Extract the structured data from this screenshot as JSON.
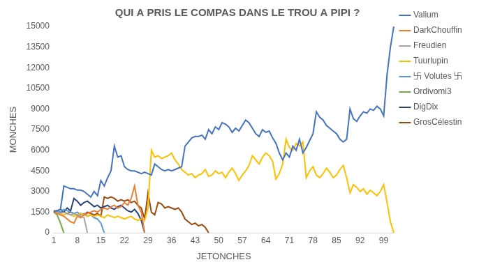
{
  "chart_data": {
    "type": "line",
    "title": "QUI A PRIS LE COMPAS DANS LE TROU A PIPI ?",
    "x_label": "JETONCHES",
    "y_label": "MONCHES",
    "categories": [
      1,
      null,
      null,
      null,
      null,
      null,
      null,
      8,
      null,
      null,
      null,
      null,
      null,
      null,
      15,
      null,
      null,
      null,
      null,
      null,
      null,
      22,
      null,
      null,
      null,
      null,
      null,
      null,
      29,
      null,
      null,
      null,
      null,
      null,
      null,
      36,
      null,
      null,
      null,
      null,
      null,
      null,
      43,
      null,
      null,
      null,
      null,
      null,
      null,
      50,
      null,
      null,
      null,
      null,
      null,
      null,
      57,
      null,
      null,
      null,
      null,
      null,
      null,
      64,
      null,
      null,
      null,
      null,
      null,
      null,
      71,
      null,
      null,
      null,
      null,
      null,
      null,
      78,
      null,
      null,
      null,
      null,
      null,
      null,
      85,
      null,
      null,
      null,
      null,
      null,
      null,
      92,
      null,
      null,
      null,
      null,
      null,
      null,
      99,
      null,
      null,
      null
    ],
    "ylim": [
      0,
      15000
    ],
    "yticks": [
      0,
      1500,
      3000,
      4500,
      6000,
      7500,
      9000,
      10500,
      12000,
      13500,
      15000
    ],
    "grid": false,
    "legend": "right",
    "series": [
      {
        "name": "Valium",
        "color": "#4472c4",
        "values": [
          1500,
          1600,
          1700,
          3400,
          3300,
          3200,
          3200,
          3100,
          3100,
          3000,
          2800,
          2600,
          3000,
          2700,
          3800,
          3400,
          4000,
          4500,
          6300,
          5500,
          5600,
          4800,
          4600,
          4500,
          4500,
          4400,
          4300,
          4400,
          4300,
          4200,
          5000,
          4800,
          4600,
          4500,
          4600,
          4500,
          4600,
          4700,
          4800,
          6300,
          6600,
          6900,
          7000,
          7000,
          7100,
          6800,
          7500,
          7200,
          7700,
          7500,
          8000,
          7900,
          7700,
          7300,
          7600,
          7400,
          7800,
          8200,
          8000,
          7600,
          7200,
          7000,
          7500,
          7300,
          7400,
          6900,
          6500,
          5800,
          5300,
          5800,
          5500,
          6300,
          6000,
          6800,
          5800,
          6200,
          6700,
          7200,
          8800,
          8400,
          8200,
          7800,
          7600,
          7400,
          7200,
          6800,
          6600,
          6800,
          9000,
          8300,
          8100,
          8500,
          8800,
          8700,
          9000,
          8900,
          9200,
          9000,
          8500,
          11500,
          13500,
          15000
        ]
      },
      {
        "name": "DarkChouffin",
        "color": "#ed7d31",
        "values": [
          1500,
          1400,
          1300,
          1200,
          1000,
          800,
          700,
          1200,
          1100,
          1300,
          1400,
          1500,
          1600,
          1500,
          1700,
          1800,
          1700,
          1900,
          2000,
          1800,
          1900,
          2200,
          2000,
          2500,
          3400,
          2000,
          1500,
          0,
          null,
          null,
          null,
          null,
          null,
          null,
          null,
          null,
          null,
          null,
          null,
          null,
          null,
          null,
          null,
          null,
          null,
          null,
          null,
          null,
          null,
          null,
          null,
          null,
          null,
          null,
          null,
          null,
          null,
          null,
          null,
          null,
          null,
          null,
          null,
          null,
          null,
          null,
          null,
          null,
          null,
          null,
          null,
          null,
          null,
          null,
          null,
          null,
          null,
          null,
          null,
          null,
          null,
          null,
          null,
          null,
          null,
          null,
          null,
          null,
          null,
          null,
          null,
          null,
          null,
          null,
          null,
          null,
          null,
          null,
          null,
          null,
          null,
          null
        ]
      },
      {
        "name": "Freudien",
        "color": "#a5a5a5",
        "values": [
          1500,
          1500,
          1400,
          1500,
          1400,
          1300,
          1400,
          1300,
          1200,
          1100,
          0,
          null,
          null,
          null,
          null,
          null,
          null,
          null,
          null,
          null,
          null,
          null,
          null,
          null,
          null,
          null,
          null,
          null,
          null,
          null,
          null,
          null,
          null,
          null,
          null,
          null,
          null,
          null,
          null,
          null,
          null,
          null,
          null,
          null,
          null,
          null,
          null,
          null,
          null,
          null,
          null,
          null,
          null,
          null,
          null,
          null,
          null,
          null,
          null,
          null,
          null,
          null,
          null,
          null,
          null,
          null,
          null,
          null,
          null,
          null,
          null,
          null,
          null,
          null,
          null,
          null,
          null,
          null,
          null,
          null,
          null,
          null,
          null,
          null,
          null,
          null,
          null,
          null,
          null,
          null,
          null,
          null,
          null,
          null,
          null,
          null,
          null,
          null,
          null,
          null,
          null,
          null
        ]
      },
      {
        "name": "Tuurlupin",
        "color": "#ffc000",
        "values": [
          1500,
          1400,
          1300,
          1300,
          1400,
          1300,
          1200,
          1300,
          1400,
          1300,
          1200,
          1300,
          1200,
          1300,
          1200,
          1100,
          1300,
          1200,
          1100,
          1200,
          1100,
          1000,
          1100,
          1200,
          1000,
          900,
          1000,
          900,
          1800,
          6000,
          5500,
          5600,
          5400,
          5500,
          5600,
          5800,
          5300,
          5000,
          4600,
          4400,
          4200,
          4300,
          4000,
          4200,
          4300,
          4600,
          4100,
          4200,
          4500,
          4300,
          4400,
          4000,
          4400,
          4700,
          4300,
          3800,
          4200,
          4500,
          4900,
          5600,
          5300,
          5000,
          5500,
          5800,
          5600,
          5200,
          3900,
          4300,
          5000,
          6800,
          6200,
          6000,
          6500,
          6300,
          6600,
          4000,
          4500,
          4800,
          4200,
          4000,
          4300,
          4700,
          4400,
          4000,
          4200,
          4600,
          4900,
          4000,
          2900,
          3500,
          3300,
          3000,
          3200,
          2800,
          3100,
          2900,
          2700,
          3000,
          3500,
          2200,
          800,
          0
        ]
      },
      {
        "name": "卐 Volutes 卐",
        "color": "#5b9bd5",
        "values": [
          1500,
          1600,
          1500,
          1700,
          1600,
          1500,
          1400,
          1500,
          1300,
          1400,
          1200,
          1300,
          1100,
          1000,
          700,
          0,
          null,
          null,
          null,
          null,
          null,
          null,
          null,
          null,
          null,
          null,
          null,
          null,
          null,
          null,
          null,
          null,
          null,
          null,
          null,
          null,
          null,
          null,
          null,
          null,
          null,
          null,
          null,
          null,
          null,
          null,
          null,
          null,
          null,
          null,
          null,
          null,
          null,
          null,
          null,
          null,
          null,
          null,
          null,
          null,
          null,
          null,
          null,
          null,
          null,
          null,
          null,
          null,
          null,
          null,
          null,
          null,
          null,
          null,
          null,
          null,
          null,
          null,
          null,
          null,
          null,
          null,
          null,
          null,
          null,
          null,
          null,
          null,
          null,
          null,
          null,
          null,
          null,
          null,
          null,
          null,
          null,
          null,
          null,
          null,
          null,
          null
        ]
      },
      {
        "name": "Ordivomi3",
        "color": "#70ad47",
        "values": [
          1500,
          1300,
          700,
          0,
          null,
          null,
          null,
          null,
          null,
          null,
          null,
          null,
          null,
          null,
          null,
          null,
          null,
          null,
          null,
          null,
          null,
          null,
          null,
          null,
          null,
          null,
          null,
          null,
          null,
          null,
          null,
          null,
          null,
          null,
          null,
          null,
          null,
          null,
          null,
          null,
          null,
          null,
          null,
          null,
          null,
          null,
          null,
          null,
          null,
          null,
          null,
          null,
          null,
          null,
          null,
          null,
          null,
          null,
          null,
          null,
          null,
          null,
          null,
          null,
          null,
          null,
          null,
          null,
          null,
          null,
          null,
          null,
          null,
          null,
          null,
          null,
          null,
          null,
          null,
          null,
          null,
          null,
          null,
          null,
          null,
          null,
          null,
          null,
          null,
          null,
          null,
          null,
          null,
          null,
          null,
          null,
          null,
          null,
          null,
          null,
          null,
          null
        ]
      },
      {
        "name": "DigDix",
        "color": "#264478",
        "values": [
          1500,
          1600,
          1700,
          1500,
          1800,
          1600,
          2500,
          2300,
          2000,
          2200,
          2300,
          2100,
          1900,
          2000,
          1800,
          1900,
          2000,
          1800,
          1700,
          1900,
          2000,
          1800,
          1600,
          1500,
          1700,
          1400,
          900,
          0,
          null,
          null,
          null,
          null,
          null,
          null,
          null,
          null,
          null,
          null,
          null,
          null,
          null,
          null,
          null,
          null,
          null,
          null,
          null,
          null,
          null,
          null,
          null,
          null,
          null,
          null,
          null,
          null,
          null,
          null,
          null,
          null,
          null,
          null,
          null,
          null,
          null,
          null,
          null,
          null,
          null,
          null,
          null,
          null,
          null,
          null,
          null,
          null,
          null,
          null,
          null,
          null,
          null,
          null,
          null,
          null,
          null,
          null,
          null,
          null,
          null,
          null,
          null,
          null,
          null,
          null,
          null,
          null,
          null,
          null,
          null,
          null,
          null,
          null
        ]
      },
      {
        "name": "GrosCélestin",
        "color": "#9e480e",
        "values": [
          1600,
          1600,
          1500,
          1500,
          1400,
          1500,
          1400,
          1300,
          1400,
          1300,
          1500,
          1400,
          1300,
          1400,
          1200,
          2600,
          2500,
          2600,
          2500,
          2300,
          2400,
          2300,
          2400,
          2200,
          2300,
          2000,
          1800,
          1000,
          2900,
          1500,
          1300,
          2200,
          2100,
          1800,
          1900,
          1800,
          1700,
          1800,
          1500,
          1000,
          800,
          600,
          700,
          500,
          600,
          400,
          0,
          null,
          null,
          null,
          null,
          null,
          null,
          null,
          null,
          null,
          null,
          null,
          null,
          null,
          null,
          null,
          null,
          null,
          null,
          null,
          null,
          null,
          null,
          null,
          null,
          null,
          null,
          null,
          null,
          null,
          null,
          null,
          null,
          null,
          null,
          null,
          null,
          null,
          null,
          null,
          null,
          null,
          null,
          null,
          null,
          null,
          null,
          null,
          null,
          null,
          null,
          null,
          null,
          null,
          null,
          null
        ]
      }
    ]
  }
}
